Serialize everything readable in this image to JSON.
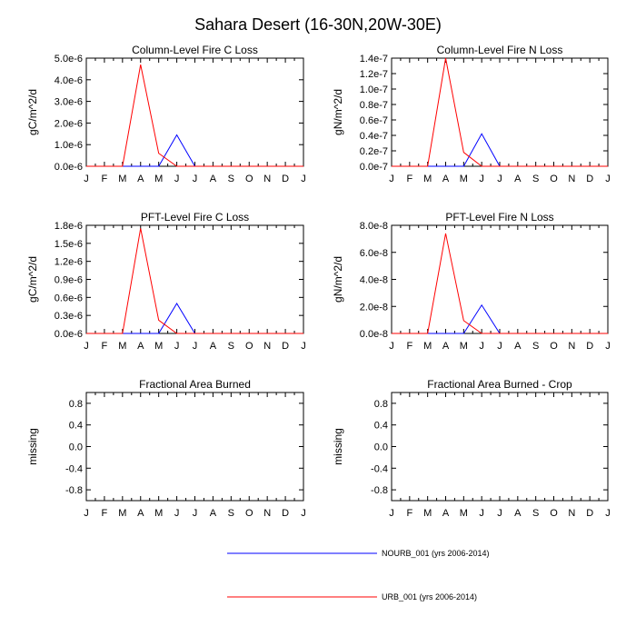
{
  "figure": {
    "title": "Sahara Desert (16-30N,20W-30E)"
  },
  "colors": {
    "nourb": "#0000ff",
    "urb": "#ff0000",
    "axis": "#000000"
  },
  "legend": {
    "placement": "bottom-center",
    "items": [
      {
        "label": "NOURB_001 (yrs 2006-2014)",
        "color": "#0000ff"
      },
      {
        "label": "URB_001 (yrs 2006-2014)",
        "color": "#ff0000"
      }
    ]
  },
  "chart_data": [
    {
      "type": "line",
      "title": "Column-Level Fire C Loss",
      "ylabel": "gC/m^2/d",
      "categories": [
        "J",
        "F",
        "M",
        "A",
        "M",
        "J",
        "J",
        "A",
        "S",
        "O",
        "N",
        "D",
        "J"
      ],
      "ylim": [
        0,
        5e-06
      ],
      "yticks": [
        0,
        1e-06,
        2e-06,
        3e-06,
        4e-06,
        5e-06
      ],
      "ytick_labels": [
        "0.0e-6",
        "1.0e-6",
        "2.0e-6",
        "3.0e-6",
        "4.0e-6",
        "5.0e-6"
      ],
      "series": [
        {
          "name": "NOURB_001 (yrs 2006-2014)",
          "color": "#0000ff",
          "values": [
            0,
            0,
            0,
            0,
            0,
            1.45e-06,
            0,
            0,
            0,
            0,
            0,
            0,
            0
          ]
        },
        {
          "name": "URB_001 (yrs 2006-2014)",
          "color": "#ff0000",
          "values": [
            0,
            0,
            0,
            4.7e-06,
            6e-07,
            0,
            0,
            0,
            0,
            0,
            0,
            0,
            0
          ]
        }
      ]
    },
    {
      "type": "line",
      "title": "Column-Level Fire N Loss",
      "ylabel": "gN/m^2/d",
      "categories": [
        "J",
        "F",
        "M",
        "A",
        "M",
        "J",
        "J",
        "A",
        "S",
        "O",
        "N",
        "D",
        "J"
      ],
      "ylim": [
        0,
        1.4e-07
      ],
      "yticks": [
        0,
        2e-08,
        4e-08,
        6e-08,
        8e-08,
        1e-07,
        1.2e-07,
        1.4e-07
      ],
      "ytick_labels": [
        "0.0e-7",
        "0.2e-7",
        "0.4e-7",
        "0.6e-7",
        "0.8e-7",
        "1.0e-7",
        "1.2e-7",
        "1.4e-7"
      ],
      "series": [
        {
          "name": "NOURB_001 (yrs 2006-2014)",
          "color": "#0000ff",
          "values": [
            0,
            0,
            0,
            0,
            0,
            4.2e-08,
            0,
            0,
            0,
            0,
            0,
            0,
            0
          ]
        },
        {
          "name": "URB_001 (yrs 2006-2014)",
          "color": "#ff0000",
          "values": [
            0,
            0,
            0,
            1.4e-07,
            1.8e-08,
            0,
            0,
            0,
            0,
            0,
            0,
            0,
            0
          ]
        }
      ]
    },
    {
      "type": "line",
      "title": "PFT-Level Fire C Loss",
      "ylabel": "gC/m^2/d",
      "categories": [
        "J",
        "F",
        "M",
        "A",
        "M",
        "J",
        "J",
        "A",
        "S",
        "O",
        "N",
        "D",
        "J"
      ],
      "ylim": [
        0,
        1.8e-06
      ],
      "yticks": [
        0,
        3e-07,
        6e-07,
        9e-07,
        1.2e-06,
        1.5e-06,
        1.8e-06
      ],
      "ytick_labels": [
        "0.0e-6",
        "0.3e-6",
        "0.6e-6",
        "0.9e-6",
        "1.2e-6",
        "1.5e-6",
        "1.8e-6"
      ],
      "series": [
        {
          "name": "NOURB_001 (yrs 2006-2014)",
          "color": "#0000ff",
          "values": [
            0,
            0,
            0,
            0,
            0,
            5e-07,
            0,
            0,
            0,
            0,
            0,
            0,
            0
          ]
        },
        {
          "name": "URB_001 (yrs 2006-2014)",
          "color": "#ff0000",
          "values": [
            0,
            0,
            0,
            1.75e-06,
            2.2e-07,
            0,
            0,
            0,
            0,
            0,
            0,
            0,
            0
          ]
        }
      ]
    },
    {
      "type": "line",
      "title": "PFT-Level Fire N Loss",
      "ylabel": "gN/m^2/d",
      "categories": [
        "J",
        "F",
        "M",
        "A",
        "M",
        "J",
        "J",
        "A",
        "S",
        "O",
        "N",
        "D",
        "J"
      ],
      "ylim": [
        0,
        8e-08
      ],
      "yticks": [
        0,
        2e-08,
        4e-08,
        6e-08,
        8e-08
      ],
      "ytick_labels": [
        "0.0e-8",
        "2.0e-8",
        "4.0e-8",
        "6.0e-8",
        "8.0e-8"
      ],
      "series": [
        {
          "name": "NOURB_001 (yrs 2006-2014)",
          "color": "#0000ff",
          "values": [
            0,
            0,
            0,
            0,
            0,
            2.1e-08,
            0,
            0,
            0,
            0,
            0,
            0,
            0
          ]
        },
        {
          "name": "URB_001 (yrs 2006-2014)",
          "color": "#ff0000",
          "values": [
            0,
            0,
            0,
            7.4e-08,
            9.5e-09,
            0,
            0,
            0,
            0,
            0,
            0,
            0,
            0
          ]
        }
      ]
    },
    {
      "type": "line",
      "title": "Fractional Area Burned",
      "ylabel": "missing",
      "categories": [
        "J",
        "F",
        "M",
        "A",
        "M",
        "J",
        "J",
        "A",
        "S",
        "O",
        "N",
        "D",
        "J"
      ],
      "ylim": [
        -1,
        1
      ],
      "yticks": [
        -0.8,
        -0.4,
        0,
        0.4,
        0.8
      ],
      "ytick_labels": [
        "-0.8",
        "-0.4",
        "0.0",
        "0.4",
        "0.8"
      ],
      "series": []
    },
    {
      "type": "line",
      "title": "Fractional Area Burned - Crop",
      "ylabel": "missing",
      "categories": [
        "J",
        "F",
        "M",
        "A",
        "M",
        "J",
        "J",
        "A",
        "S",
        "O",
        "N",
        "D",
        "J"
      ],
      "ylim": [
        -1,
        1
      ],
      "yticks": [
        -0.8,
        -0.4,
        0,
        0.4,
        0.8
      ],
      "ytick_labels": [
        "-0.8",
        "-0.4",
        "0.0",
        "0.4",
        "0.8"
      ],
      "series": []
    }
  ]
}
